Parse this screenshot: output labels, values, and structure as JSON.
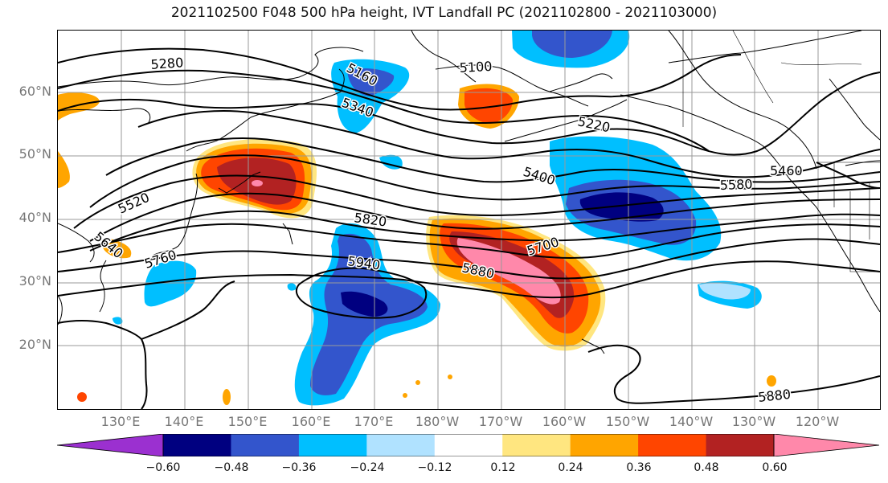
{
  "title": "2021102500 F048 500 hPa height, IVT Landfall PC (2021102800 - 2021103000)",
  "lat_labels": [
    "60°N",
    "50°N",
    "40°N",
    "30°N",
    "20°N"
  ],
  "lon_labels": [
    "130°E",
    "140°E",
    "150°E",
    "160°E",
    "170°E",
    "180°W",
    "170°W",
    "160°W",
    "150°W",
    "140°W",
    "130°W",
    "120°W"
  ],
  "contour_labels": [
    "5280",
    "5160",
    "5100",
    "5340",
    "5220",
    "5400",
    "5460",
    "5580",
    "5520",
    "5820",
    "5640",
    "5700",
    "5760",
    "5940",
    "5880",
    "5880"
  ],
  "colorbar": {
    "ticks": [
      "−0.60",
      "−0.48",
      "−0.36",
      "−0.24",
      "−0.12",
      "0.12",
      "0.24",
      "0.36",
      "0.48",
      "0.60"
    ],
    "colors": [
      "#9b30d0",
      "#000080",
      "#3355cc",
      "#00bfff",
      "#b0e2ff",
      "#ffffff",
      "#ffe680",
      "#ffa500",
      "#ff4500",
      "#b22222",
      "#ff88aa"
    ]
  }
}
